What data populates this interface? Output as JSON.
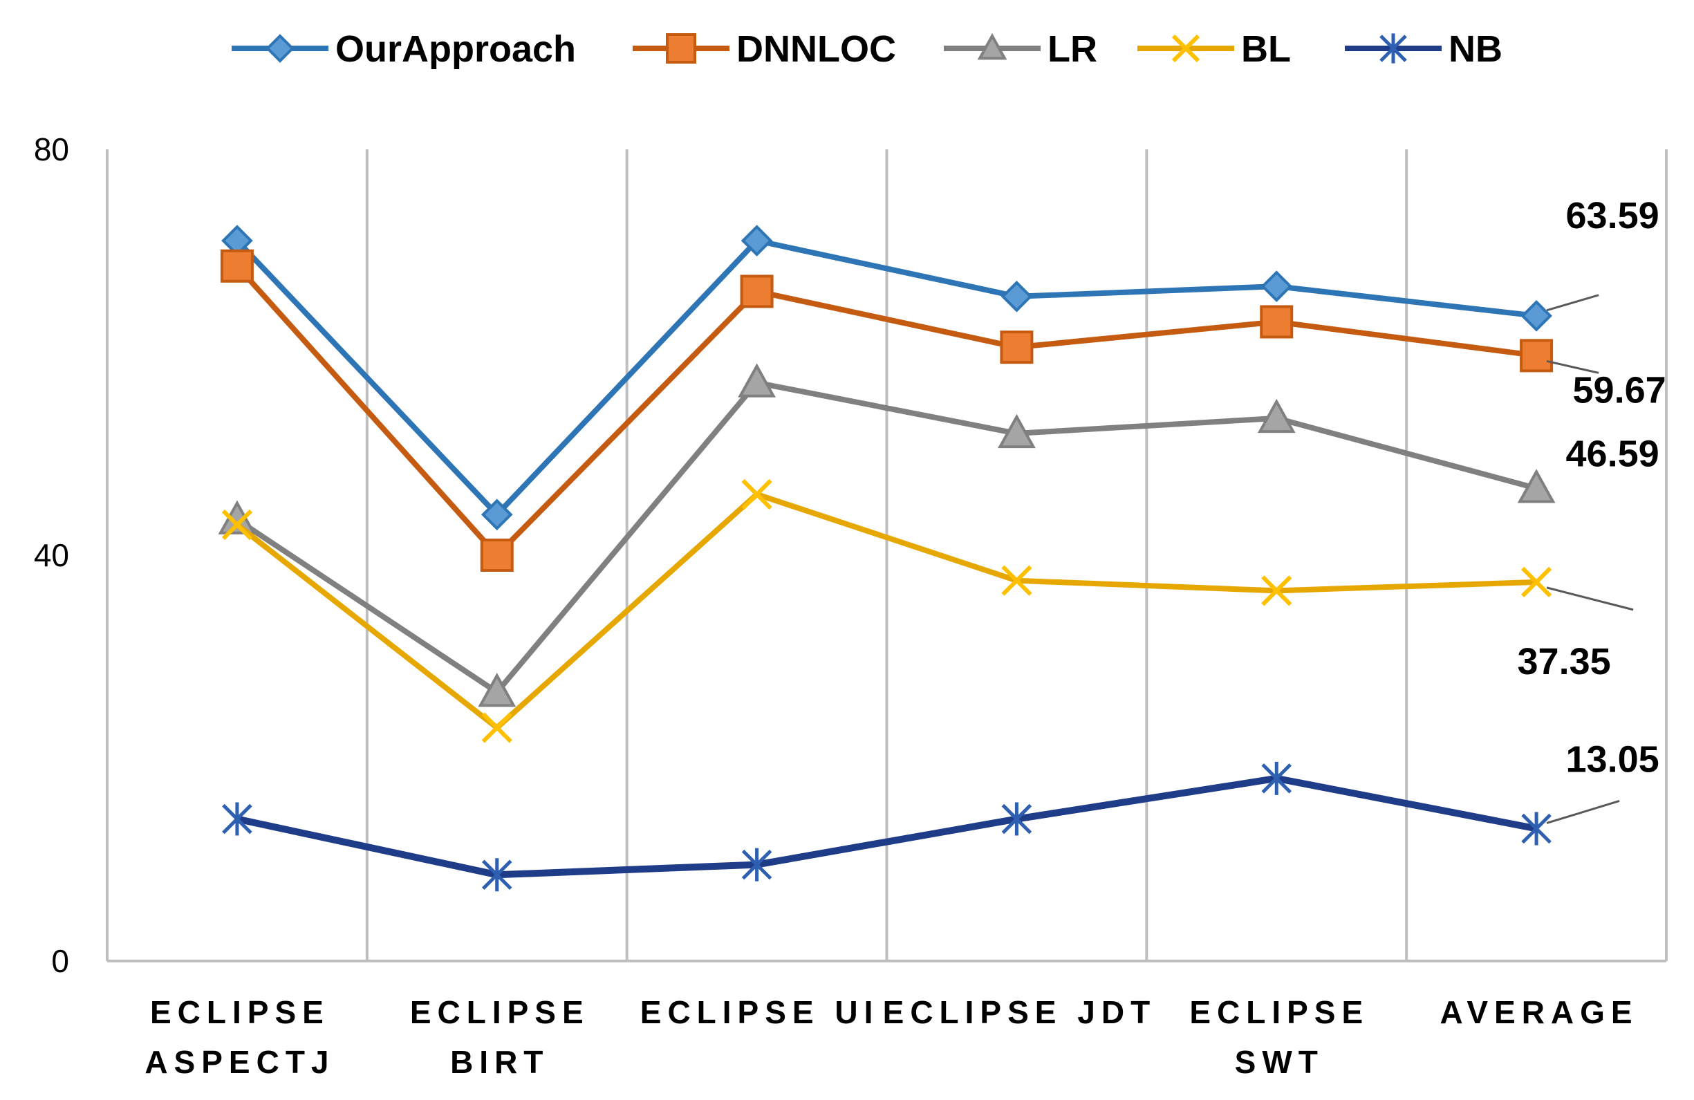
{
  "chart_data": {
    "type": "line",
    "title": "",
    "xlabel": "",
    "ylabel": "",
    "ylim": [
      0,
      80
    ],
    "yticks": [
      "0",
      "40",
      "80"
    ],
    "grid": "vertical",
    "legend": "top",
    "categories": [
      [
        "ECLIPSE",
        "ASPECTJ"
      ],
      [
        "ECLIPSE",
        "BIRT"
      ],
      [
        "ECLIPSE UI"
      ],
      [
        "ECLIPSE JDT"
      ],
      [
        "ECLIPSE",
        "SWT"
      ],
      [
        "AVERAGE"
      ]
    ],
    "series": [
      {
        "name": "OurApproach",
        "color": "#2E75B6",
        "marker": "diamond",
        "values": [
          71,
          44,
          71,
          65.5,
          66.5,
          63.59
        ]
      },
      {
        "name": "DNNLOC",
        "color": "#C55A11",
        "marker": "square",
        "values": [
          68.5,
          40,
          66,
          60.5,
          63,
          59.67
        ]
      },
      {
        "name": "LR",
        "color": "#808080",
        "marker": "triangle",
        "values": [
          43.5,
          26.5,
          57,
          52,
          53.5,
          46.59
        ]
      },
      {
        "name": "BL",
        "color": "#E6A800",
        "marker": "x",
        "values": [
          43,
          23,
          46,
          37.5,
          36.5,
          37.35
        ]
      },
      {
        "name": "NB",
        "color": "#1F3C88",
        "marker": "asterisk",
        "values": [
          14,
          8.5,
          9.5,
          14,
          18,
          13.05
        ]
      }
    ],
    "data_labels": [
      {
        "series": 0,
        "index": 5,
        "text": "63.59"
      },
      {
        "series": 1,
        "index": 5,
        "text": "59.67"
      },
      {
        "series": 2,
        "index": 5,
        "text": "46.59"
      },
      {
        "series": 3,
        "index": 5,
        "text": "37.35"
      },
      {
        "series": 4,
        "index": 5,
        "text": "13.05"
      }
    ]
  }
}
